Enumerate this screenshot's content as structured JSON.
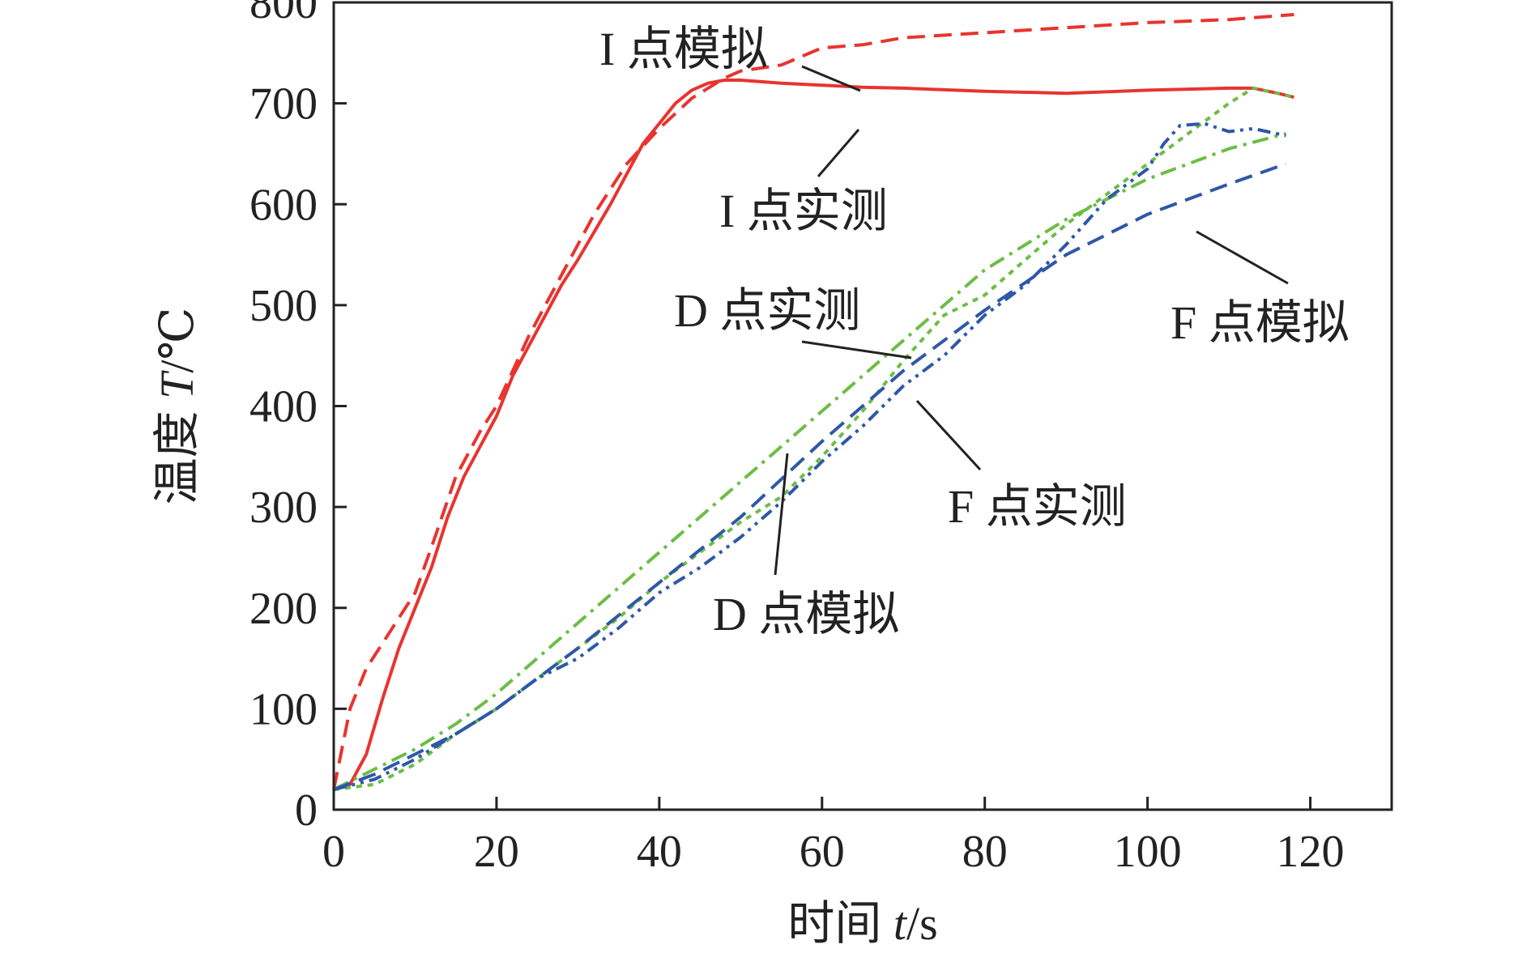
{
  "chart_data": {
    "type": "line",
    "title": "",
    "xlabel": {
      "prefix": "时间 ",
      "var": "t",
      "unit": "/s"
    },
    "ylabel": {
      "prefix": "温度 ",
      "var": "T",
      "unit": "/℃"
    },
    "xlim": [
      0,
      130
    ],
    "ylim": [
      0,
      800
    ],
    "xticks": [
      0,
      20,
      40,
      60,
      80,
      100,
      120
    ],
    "yticks": [
      0,
      100,
      200,
      300,
      400,
      500,
      600,
      700,
      800
    ],
    "grid": false,
    "series": [
      {
        "name": "I 点模拟",
        "color": "#e8342f",
        "dash": "dashed",
        "x": [
          0,
          2,
          4,
          6,
          8,
          10,
          12,
          15,
          18,
          20,
          24,
          28,
          32,
          36,
          40,
          44,
          48,
          50,
          55,
          60,
          65,
          70,
          80,
          90,
          100,
          110,
          118
        ],
        "y": [
          20,
          100,
          140,
          165,
          190,
          215,
          260,
          330,
          375,
          400,
          470,
          530,
          590,
          640,
          675,
          705,
          725,
          732,
          738,
          755,
          758,
          765,
          770,
          775,
          780,
          783,
          788
        ]
      },
      {
        "name": "I 点实测",
        "color": "#e8342f",
        "dash": "solid",
        "x": [
          0,
          2,
          4,
          6,
          8,
          10,
          12,
          14,
          16,
          18,
          20,
          22,
          24,
          26,
          28,
          30,
          34,
          38,
          40,
          42,
          44,
          46,
          48,
          50,
          55,
          60,
          65,
          70,
          80,
          90,
          100,
          110,
          113,
          116,
          118
        ],
        "y": [
          20,
          25,
          55,
          110,
          160,
          200,
          240,
          290,
          330,
          360,
          390,
          430,
          460,
          490,
          520,
          545,
          600,
          660,
          680,
          700,
          713,
          720,
          723,
          723,
          720,
          718,
          716,
          715,
          712,
          710,
          713,
          715,
          715,
          710,
          706
        ]
      },
      {
        "name": "D 点模拟",
        "color": "#6cbd45",
        "dash": "dashdot",
        "x": [
          0,
          5,
          10,
          15,
          20,
          30,
          40,
          50,
          60,
          70,
          80,
          90,
          100,
          110,
          117
        ],
        "y": [
          20,
          40,
          60,
          85,
          115,
          185,
          255,
          325,
          395,
          465,
          535,
          585,
          625,
          655,
          670
        ]
      },
      {
        "name": "D 点实测",
        "color": "#6cbd45",
        "dash": "dotted",
        "x": [
          0,
          5,
          10,
          15,
          20,
          25,
          30,
          35,
          40,
          45,
          50,
          55,
          60,
          65,
          70,
          75,
          80,
          85,
          90,
          95,
          100,
          105,
          110,
          113,
          116,
          118
        ],
        "y": [
          20,
          25,
          45,
          75,
          100,
          130,
          160,
          190,
          225,
          255,
          285,
          310,
          350,
          395,
          445,
          490,
          510,
          545,
          580,
          610,
          640,
          670,
          700,
          715,
          710,
          706
        ]
      },
      {
        "name": "F 点模拟",
        "color": "#2e58a6",
        "dash": "dashed",
        "x": [
          0,
          5,
          10,
          15,
          20,
          30,
          40,
          50,
          60,
          70,
          80,
          90,
          100,
          110,
          117
        ],
        "y": [
          20,
          35,
          55,
          75,
          100,
          160,
          225,
          290,
          365,
          435,
          495,
          550,
          590,
          620,
          640
        ]
      },
      {
        "name": "F 点实测",
        "color": "#2e58a6",
        "dash": "dashdotdot",
        "x": [
          0,
          5,
          10,
          15,
          20,
          25,
          30,
          35,
          40,
          45,
          50,
          55,
          60,
          65,
          70,
          75,
          80,
          85,
          90,
          95,
          100,
          102,
          104,
          107,
          110,
          113,
          117
        ],
        "y": [
          20,
          30,
          50,
          75,
          100,
          130,
          150,
          180,
          215,
          240,
          270,
          305,
          345,
          380,
          420,
          450,
          490,
          520,
          560,
          605,
          635,
          660,
          678,
          680,
          672,
          675,
          668
        ]
      }
    ],
    "annotations": [
      {
        "label": "I 点模拟",
        "series": "I 点模拟"
      },
      {
        "label": "I 点实测",
        "series": "I 点实测"
      },
      {
        "label": "D 点实测",
        "series": "D 点实测"
      },
      {
        "label": "D 点模拟",
        "series": "D 点模拟"
      },
      {
        "label": "F 点实测",
        "series": "F 点实测"
      },
      {
        "label": "F 点模拟",
        "series": "F 点模拟"
      }
    ]
  }
}
